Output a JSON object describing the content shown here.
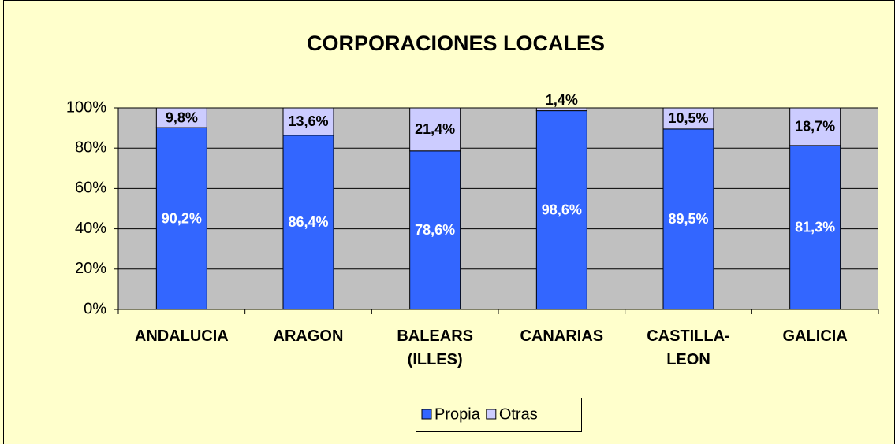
{
  "chart_data": {
    "type": "stacked_bar",
    "title": "CORPORACIONES LOCALES",
    "categories": [
      "ANDALUCIA",
      "ARAGON",
      "BALEARS (ILLES)",
      "CANARIAS",
      "CASTILLA-LEON",
      "GALICIA"
    ],
    "series": [
      {
        "name": "Propia",
        "color": "#3366ff",
        "values": [
          90.2,
          86.4,
          78.6,
          98.6,
          89.5,
          81.3
        ],
        "value_labels": [
          "90,2%",
          "86,4%",
          "78,6%",
          "98,6%",
          "89,5%",
          "81,3%"
        ]
      },
      {
        "name": "Otras",
        "color": "#ccccff",
        "values": [
          9.8,
          13.6,
          21.4,
          1.4,
          10.5,
          18.7
        ],
        "value_labels": [
          "9,8%",
          "13,6%",
          "21,4%",
          "1,4%",
          "10,5%",
          "18,7%"
        ]
      }
    ],
    "ylim": [
      0,
      100
    ],
    "yticks": [
      {
        "value": 0,
        "label": "0%"
      },
      {
        "value": 20,
        "label": "20%"
      },
      {
        "value": 40,
        "label": "40%"
      },
      {
        "value": 60,
        "label": "60%"
      },
      {
        "value": 80,
        "label": "80%"
      },
      {
        "value": 100,
        "label": "100%"
      }
    ],
    "grid": true,
    "legend": "bottom"
  }
}
